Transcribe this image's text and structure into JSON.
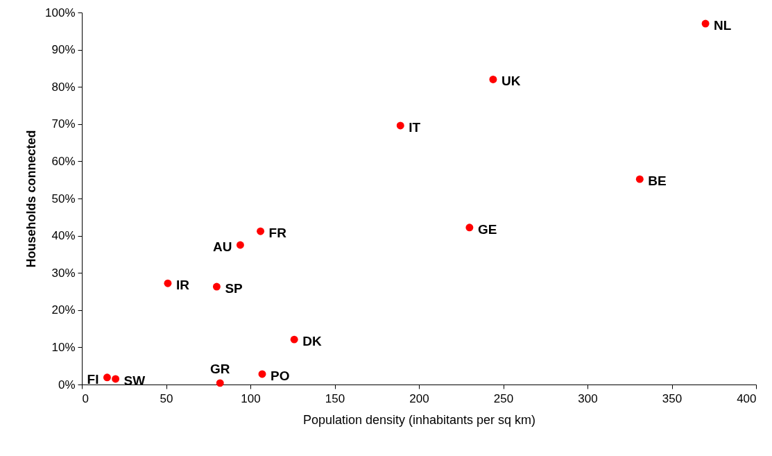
{
  "chart_data": {
    "type": "scatter",
    "xlabel": "Population density (inhabitants per sq km)",
    "ylabel": "Households connected",
    "x": [
      370,
      244,
      189,
      331,
      230,
      106,
      94,
      51,
      80,
      126,
      15,
      20,
      82,
      107
    ],
    "series": [
      {
        "color": "#ff0000",
        "values": [
          97,
          82,
          69.6,
          55.2,
          42.2,
          41.2,
          37.5,
          27.2,
          26.3,
          12.1,
          1.9,
          1.5,
          0.4,
          2.8
        ]
      }
    ],
    "annotations": [
      {
        "text": "NL",
        "x": 370,
        "y": 97
      },
      {
        "text": "UK",
        "x": 244,
        "y": 82
      },
      {
        "text": "IT",
        "x": 189,
        "y": 69.6
      },
      {
        "text": "BE",
        "x": 331,
        "y": 55.2
      },
      {
        "text": "GE",
        "x": 230,
        "y": 42.2
      },
      {
        "text": "FR",
        "x": 106,
        "y": 41.2
      },
      {
        "text": "AU",
        "x": 94,
        "y": 37.5
      },
      {
        "text": "IR",
        "x": 51,
        "y": 27.2
      },
      {
        "text": "SP",
        "x": 80,
        "y": 26.3
      },
      {
        "text": "DK",
        "x": 126,
        "y": 12.1
      },
      {
        "text": "FI",
        "x": 15,
        "y": 1.9
      },
      {
        "text": "SW",
        "x": 20,
        "y": 1.5
      },
      {
        "text": "GR",
        "x": 82,
        "y": 0.4
      },
      {
        "text": "PO",
        "x": 107,
        "y": 2.8
      }
    ],
    "xlim": [
      0,
      400
    ],
    "xticks": [
      0,
      50,
      100,
      150,
      200,
      250,
      300,
      350,
      400
    ],
    "ylim": [
      0,
      100
    ],
    "yticks": [
      {
        "value": 0,
        "label": "0%"
      },
      {
        "value": 10,
        "label": "10%"
      },
      {
        "value": 20,
        "label": "20%"
      },
      {
        "value": 30,
        "label": "30%"
      },
      {
        "value": 40,
        "label": "40%"
      },
      {
        "value": 50,
        "label": "50%"
      },
      {
        "value": 60,
        "label": "60%"
      },
      {
        "value": 70,
        "label": "70%"
      },
      {
        "value": 80,
        "label": "80%"
      },
      {
        "value": 90,
        "label": "90%"
      },
      {
        "value": 100,
        "label": "100%"
      }
    ],
    "grid": false,
    "marker": "circle",
    "legend": false
  }
}
